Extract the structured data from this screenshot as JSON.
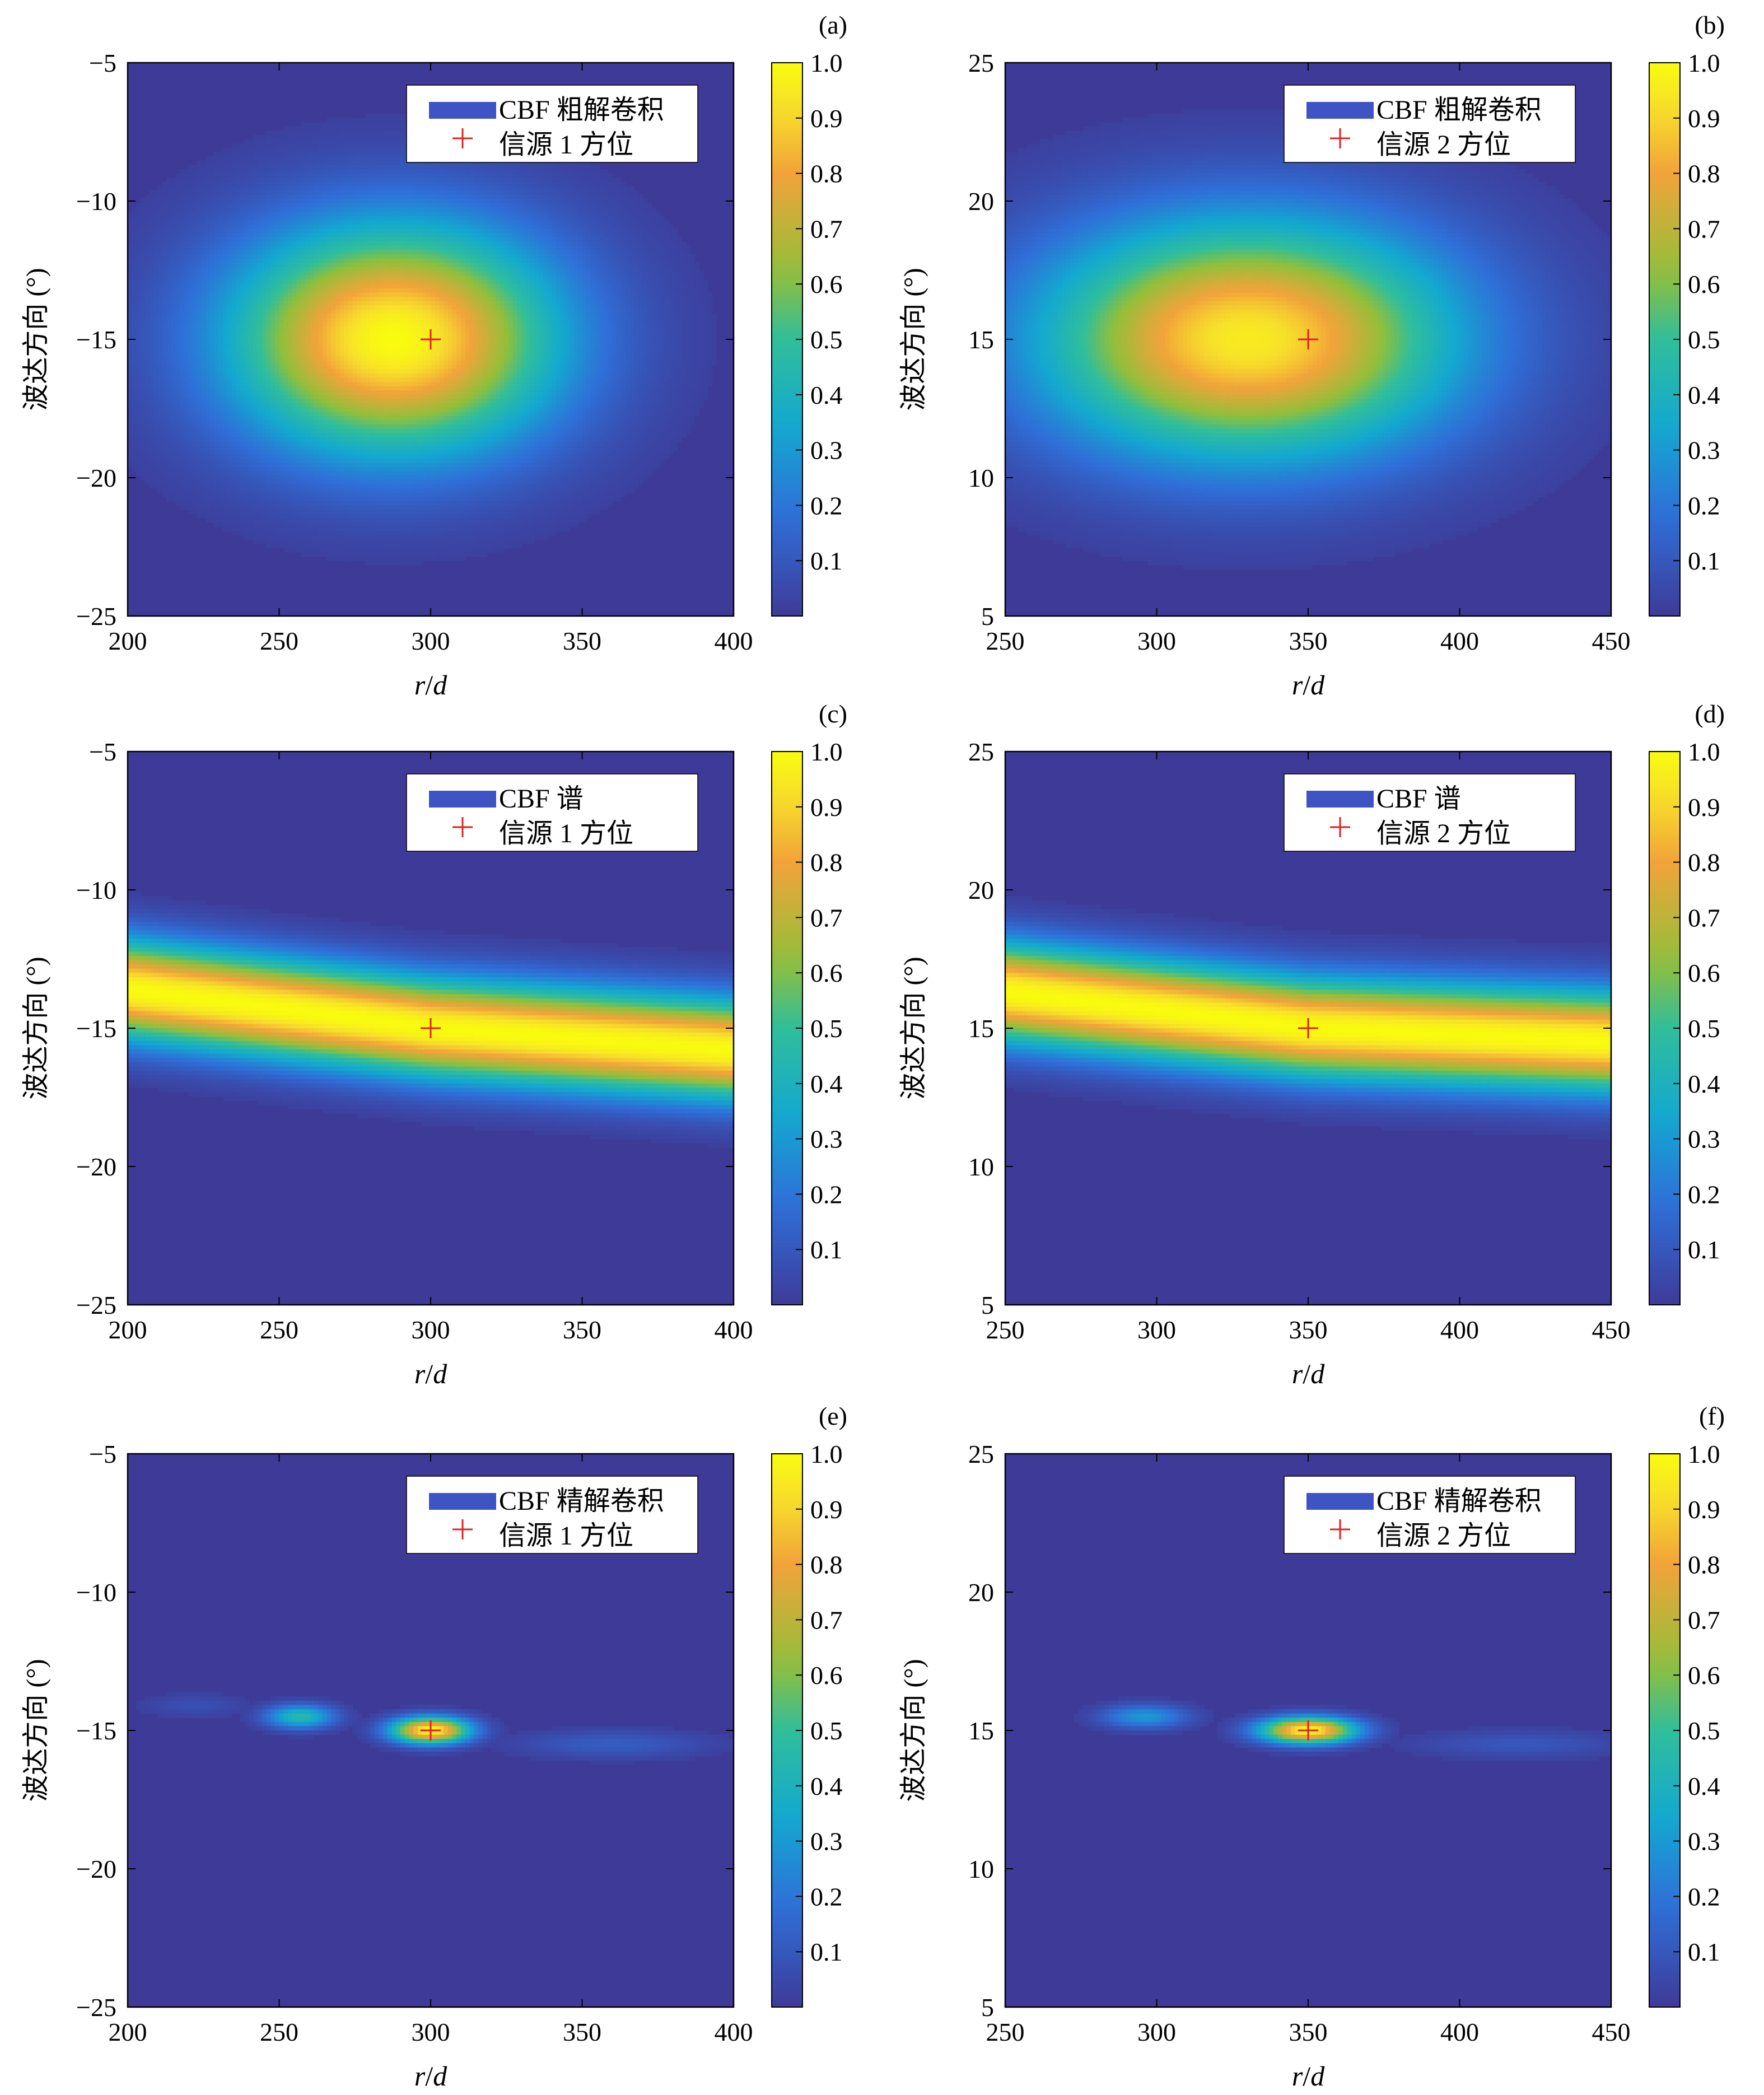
{
  "colorbar_ticks": [
    "0.1",
    "0.2",
    "0.3",
    "0.4",
    "0.5",
    "0.6",
    "0.7",
    "0.8",
    "0.9",
    "1.0"
  ],
  "colors": {
    "background_low": "#3e3b98",
    "colormap": [
      "#3e3b98",
      "#2f6fd8",
      "#13a8d0",
      "#30be9a",
      "#92bf3a",
      "#f2a33a",
      "#f7e02a",
      "#f9fb0e"
    ],
    "marker": "#e02020",
    "legend_patch": "#3e53c4"
  },
  "chart_data": [
    {
      "panel_label": "(a)",
      "type": "heatmap",
      "xlabel_italic": "r",
      "xlabel_slash": "/",
      "xlabel_italic2": "d",
      "ylabel": "波达方向 (°)",
      "xlim": [
        200,
        400
      ],
      "ylim": [
        -25,
        -5
      ],
      "x_ticks": [
        "200",
        "250",
        "300",
        "350",
        "400"
      ],
      "y_ticks": [
        "−5",
        "−10",
        "−15",
        "−20",
        "−25"
      ],
      "legend": [
        "CBF 粗解卷积",
        "信源 1 方位"
      ],
      "source": {
        "r": 300,
        "doa": -15
      },
      "blobs": [
        {
          "r": 288,
          "doa": -15,
          "amp": 1.0,
          "sr": 38,
          "sd": 2.9
        }
      ],
      "band": null,
      "colorbar_range": [
        0,
        1
      ]
    },
    {
      "panel_label": "(b)",
      "type": "heatmap",
      "xlabel_italic": "r",
      "xlabel_slash": "/",
      "xlabel_italic2": "d",
      "ylabel": "波达方向 (°)",
      "xlim": [
        250,
        450
      ],
      "ylim": [
        5,
        25
      ],
      "x_ticks": [
        "250",
        "300",
        "350",
        "400",
        "450"
      ],
      "y_ticks": [
        "25",
        "20",
        "15",
        "10",
        "5"
      ],
      "legend": [
        "CBF 粗解卷积",
        "信源 2 方位"
      ],
      "source": {
        "r": 350,
        "doa": 15
      },
      "blobs": [
        {
          "r": 330,
          "doa": 15,
          "amp": 0.95,
          "sr": 48,
          "sd": 3.0
        }
      ],
      "band": null,
      "colorbar_range": [
        0,
        1
      ]
    },
    {
      "panel_label": "(c)",
      "type": "heatmap",
      "xlabel_italic": "r",
      "xlabel_slash": "/",
      "xlabel_italic2": "d",
      "ylabel": "波达方向 (°)",
      "xlim": [
        200,
        400
      ],
      "ylim": [
        -25,
        -5
      ],
      "x_ticks": [
        "200",
        "250",
        "300",
        "350",
        "400"
      ],
      "y_ticks": [
        "−5",
        "−10",
        "−15",
        "−20",
        "−25"
      ],
      "legend": [
        "CBF 谱",
        "信源 1 方位"
      ],
      "source": {
        "r": 300,
        "doa": -15
      },
      "blobs": [],
      "band": {
        "doa_at_xmin": -13.6,
        "doa_at_source": -15.0,
        "doa_at_xmax": -15.8,
        "width_doa": 1.25,
        "amp": 1.0
      },
      "colorbar_range": [
        0,
        1
      ]
    },
    {
      "panel_label": "(d)",
      "type": "heatmap",
      "xlabel_italic": "r",
      "xlabel_slash": "/",
      "xlabel_italic2": "d",
      "ylabel": "波达方向 (°)",
      "xlim": [
        250,
        450
      ],
      "ylim": [
        5,
        25
      ],
      "x_ticks": [
        "250",
        "300",
        "350",
        "400",
        "450"
      ],
      "y_ticks": [
        "25",
        "20",
        "15",
        "10",
        "5"
      ],
      "legend": [
        "CBF 谱",
        "信源 2 方位"
      ],
      "source": {
        "r": 350,
        "doa": 15
      },
      "blobs": [],
      "band": {
        "doa_at_xmin": 16.3,
        "doa_at_source": 15.0,
        "doa_at_xmax": 14.5,
        "width_doa": 1.25,
        "amp": 1.0
      },
      "colorbar_range": [
        0,
        1
      ]
    },
    {
      "panel_label": "(e)",
      "type": "heatmap",
      "xlabel_italic": "r",
      "xlabel_slash": "/",
      "xlabel_italic2": "d",
      "ylabel": "波达方向 (°)",
      "xlim": [
        200,
        400
      ],
      "ylim": [
        -25,
        -5
      ],
      "x_ticks": [
        "200",
        "250",
        "300",
        "350",
        "400"
      ],
      "y_ticks": [
        "−5",
        "−10",
        "−15",
        "−20",
        "−25"
      ],
      "legend": [
        "CBF 精解卷积",
        "信源 1 方位"
      ],
      "source": {
        "r": 300,
        "doa": -15
      },
      "blobs": [
        {
          "r": 300,
          "doa": -15,
          "amp": 1.0,
          "sr": 9,
          "sd": 0.33
        },
        {
          "r": 257,
          "doa": -14.5,
          "amp": 0.45,
          "sr": 8,
          "sd": 0.3
        },
        {
          "r": 360,
          "doa": -15.5,
          "amp": 0.12,
          "sr": 22,
          "sd": 0.35
        },
        {
          "r": 222,
          "doa": -14.1,
          "amp": 0.07,
          "sr": 12,
          "sd": 0.3
        }
      ],
      "band": null,
      "colorbar_range": [
        0,
        1
      ]
    },
    {
      "panel_label": "(f)",
      "type": "heatmap",
      "xlabel_italic": "r",
      "xlabel_slash": "/",
      "xlabel_italic2": "d",
      "ylabel": "波达方向 (°)",
      "xlim": [
        250,
        450
      ],
      "ylim": [
        5,
        25
      ],
      "x_ticks": [
        "250",
        "300",
        "350",
        "400",
        "450"
      ],
      "y_ticks": [
        "25",
        "20",
        "15",
        "10",
        "5"
      ],
      "legend": [
        "CBF 精解卷积",
        "信源 2 方位"
      ],
      "source": {
        "r": 350,
        "doa": 15
      },
      "blobs": [
        {
          "r": 350,
          "doa": 15,
          "amp": 1.0,
          "sr": 11,
          "sd": 0.33
        },
        {
          "r": 296,
          "doa": 15.5,
          "amp": 0.3,
          "sr": 10,
          "sd": 0.3
        },
        {
          "r": 420,
          "doa": 14.5,
          "amp": 0.1,
          "sr": 24,
          "sd": 0.35
        }
      ],
      "band": null,
      "colorbar_range": [
        0,
        1
      ]
    }
  ]
}
